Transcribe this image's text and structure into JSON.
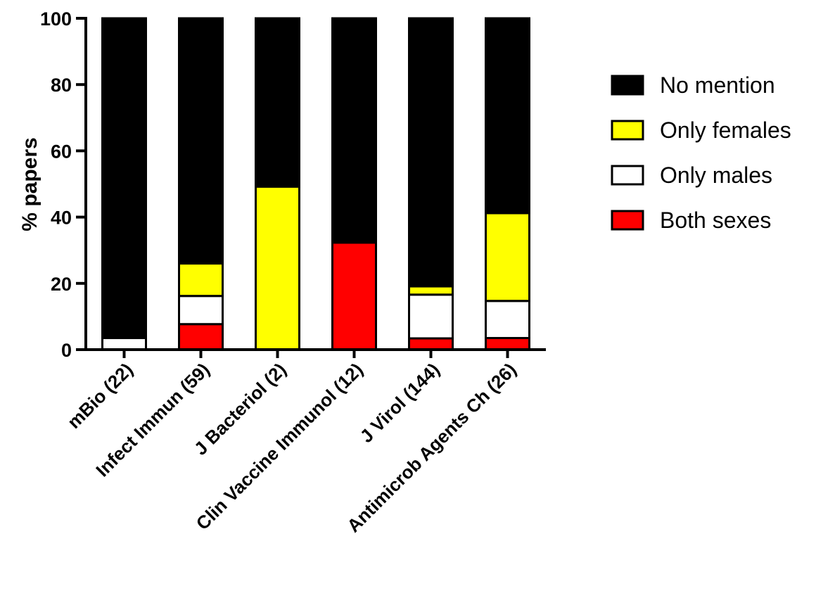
{
  "chart_data": {
    "type": "bar",
    "stacked": true,
    "categories": [
      "mBio (22)",
      "Infect Immun (59)",
      "J Bacteriol (2)",
      "Clin Vaccine Immunol (12)",
      "J Virol (144)",
      "Antimicrob Agents Ch (26)"
    ],
    "series": [
      {
        "name": "Both sexes",
        "color": "#ff0000",
        "values": [
          0,
          7.7,
          0,
          32.3,
          3.4,
          3.5
        ]
      },
      {
        "name": "Only males",
        "color": "#ffffff",
        "values": [
          3.5,
          8.5,
          0,
          0,
          13.2,
          11.2
        ]
      },
      {
        "name": "Only females",
        "color": "#ffff00",
        "values": [
          0,
          9.8,
          49.2,
          0,
          2.5,
          26.5
        ]
      },
      {
        "name": "No mention",
        "color": "#000000",
        "values": [
          96.5,
          74.0,
          50.8,
          67.7,
          80.9,
          58.8
        ]
      }
    ],
    "legend_order": [
      "No mention",
      "Only females",
      "Only males",
      "Both sexes"
    ],
    "ylabel": "% papers",
    "xlabel": "",
    "ylim": [
      0,
      100
    ],
    "yticks": [
      0,
      20,
      40,
      60,
      80,
      100
    ],
    "grid": false,
    "legend_position": "right"
  }
}
